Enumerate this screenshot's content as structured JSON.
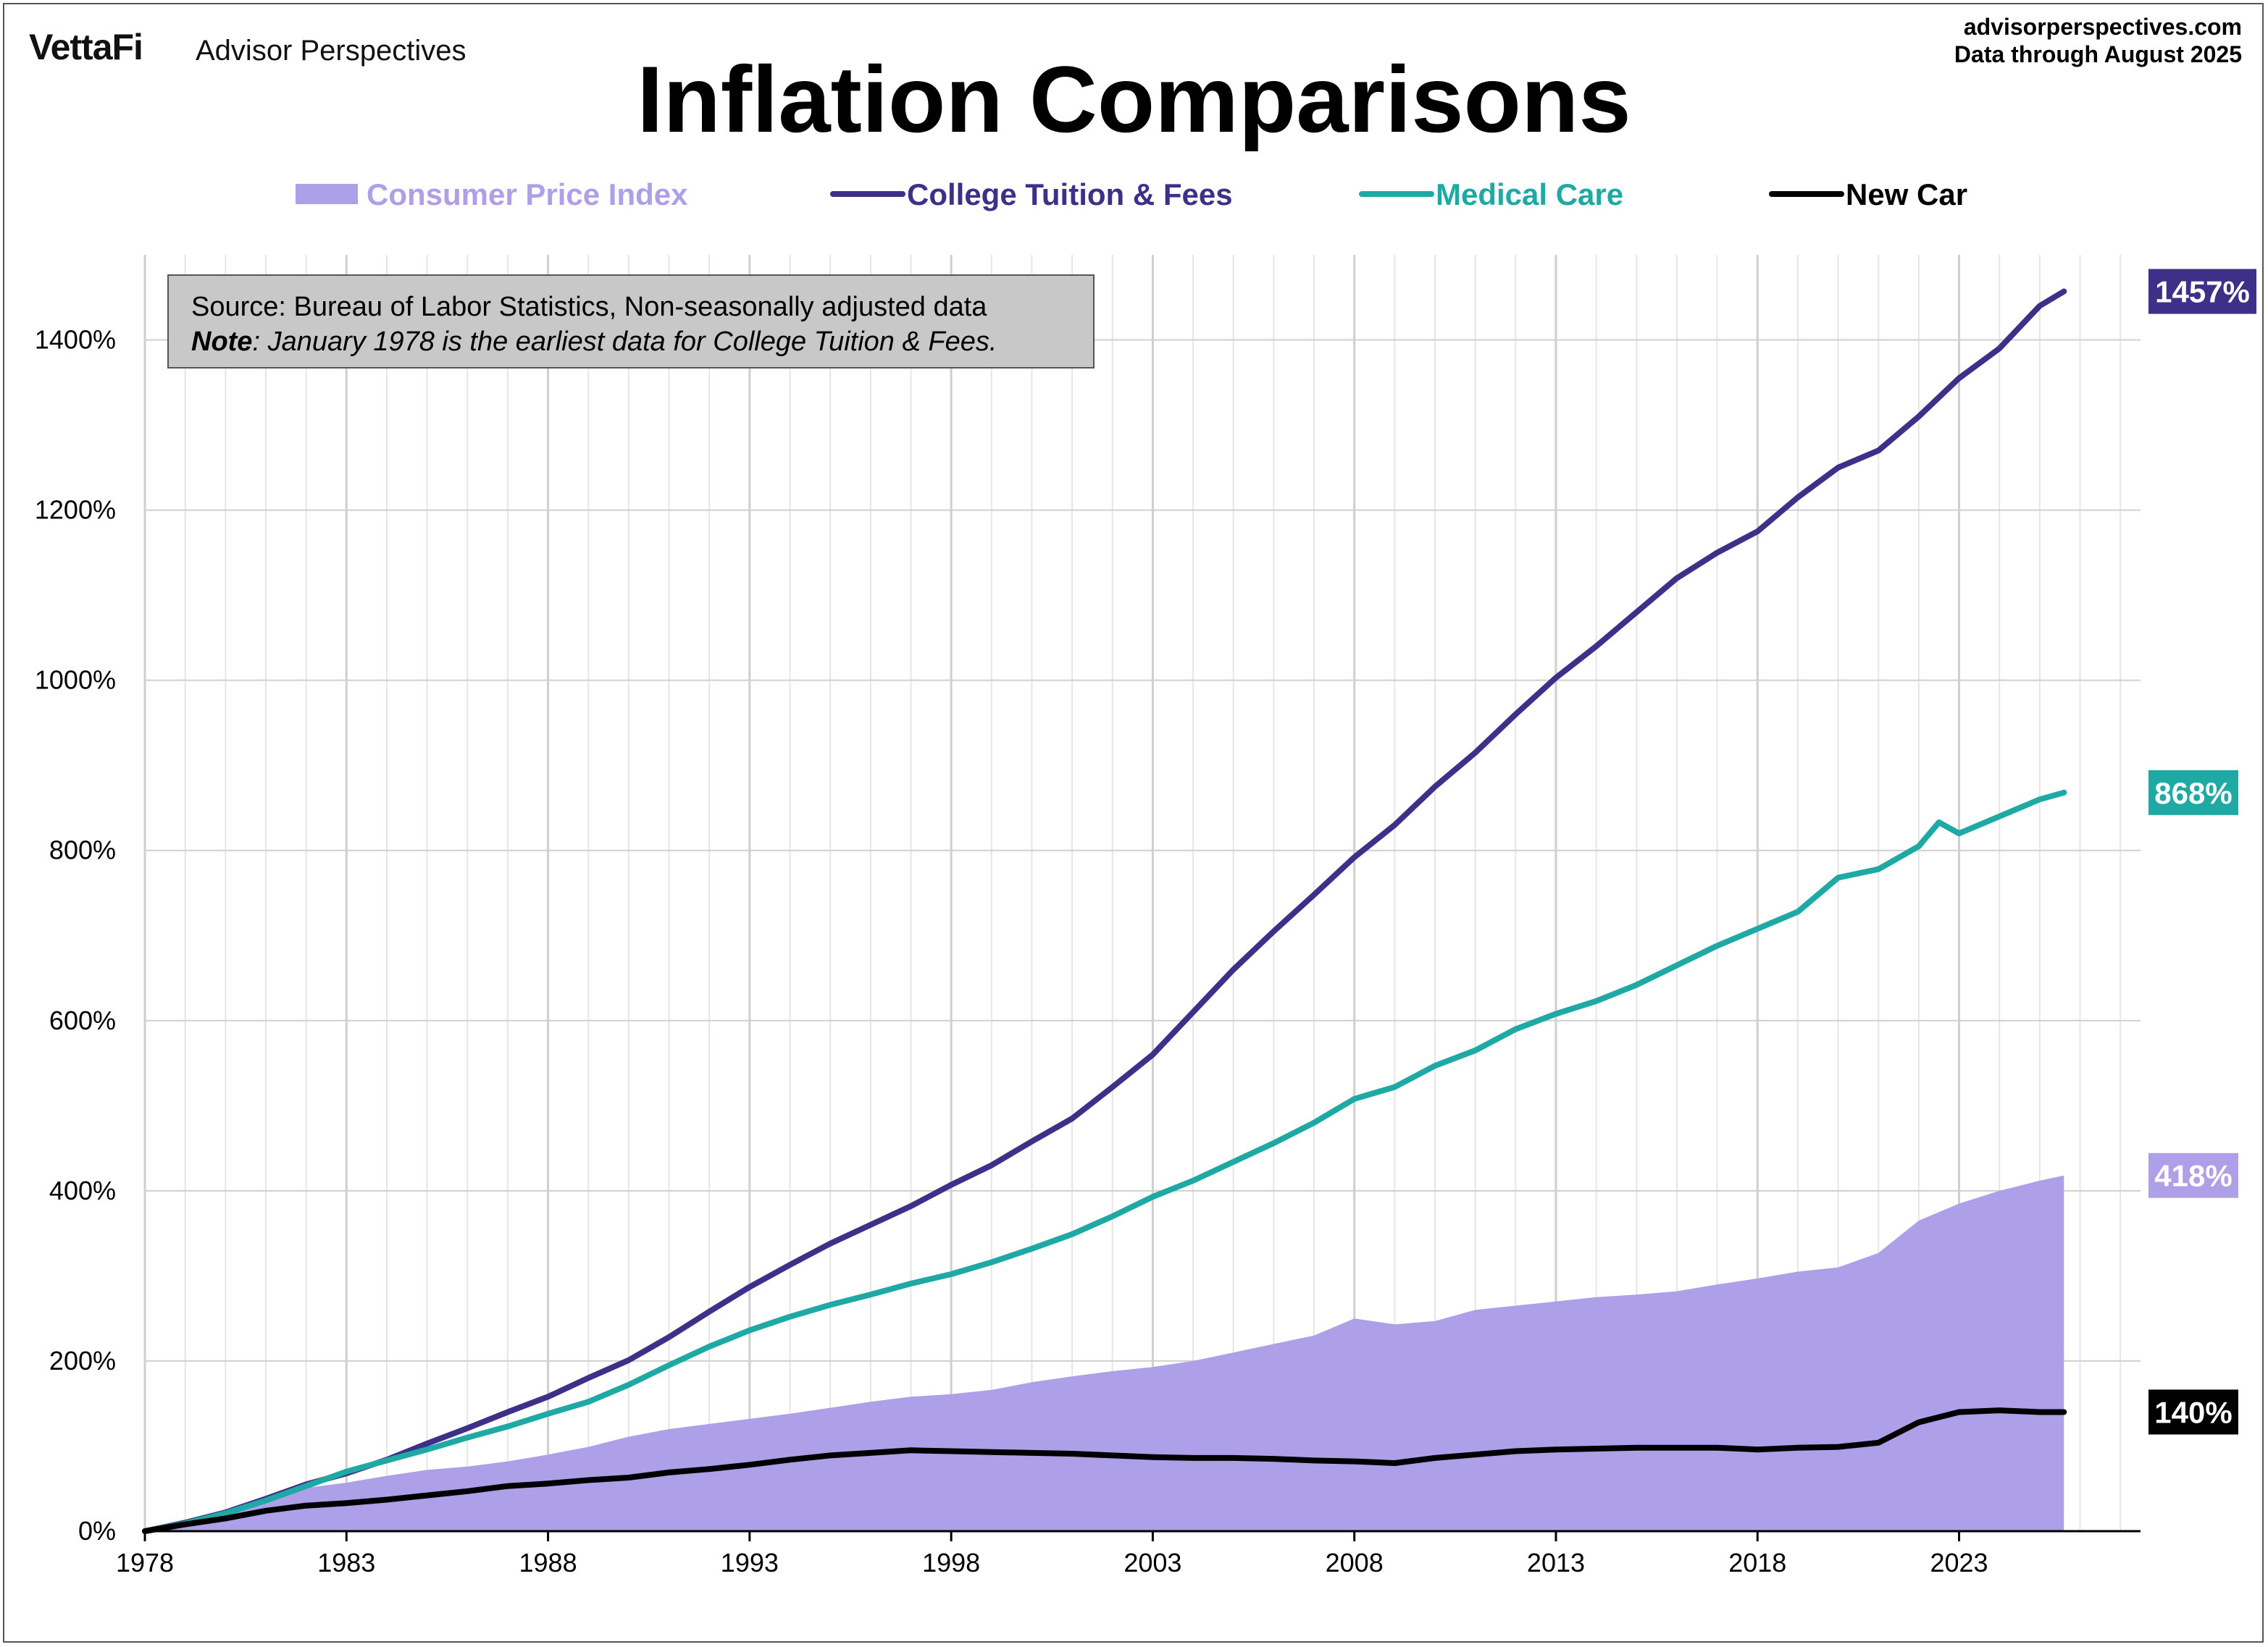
{
  "header": {
    "logo": "VettaFi",
    "logo_sub": "Advisor Perspectives",
    "site": "advisorperspectives.com",
    "data_through": "Data through  August 2025"
  },
  "chart_data": {
    "type": "line",
    "title": "Inflation Comparisons",
    "xlabel": "",
    "ylabel": "",
    "xlim": [
      1978,
      2027.5
    ],
    "ylim": [
      0,
      1500
    ],
    "y_ticks": [
      0,
      200,
      400,
      600,
      800,
      1000,
      1200,
      1400
    ],
    "y_tick_labels": [
      "0%",
      "200%",
      "400%",
      "600%",
      "800%",
      "1000%",
      "1200%",
      "1400%"
    ],
    "x_ticks": [
      1978,
      1983,
      1988,
      1993,
      1998,
      2003,
      2008,
      2013,
      2018,
      2023
    ],
    "x_tick_labels": [
      "1978",
      "1983",
      "1988",
      "1993",
      "1998",
      "2003",
      "2008",
      "2013",
      "2018",
      "2023"
    ],
    "grid": true,
    "legend_position": "top",
    "note": {
      "line1": "Source: Bureau of Labor Statistics, Non-seasonally adjusted data",
      "line2_bold": "Note",
      "line2_rest": ": January 1978 is the earliest data for College Tuition & Fees."
    },
    "series": [
      {
        "name": "Consumer Price Index",
        "style": "area",
        "color": "#ada0e8",
        "end_label": "418%",
        "points": [
          [
            1978,
            0
          ],
          [
            1979,
            10
          ],
          [
            1980,
            25
          ],
          [
            1981,
            40
          ],
          [
            1982,
            51
          ],
          [
            1983,
            57
          ],
          [
            1984,
            65
          ],
          [
            1985,
            72
          ],
          [
            1986,
            76
          ],
          [
            1987,
            82
          ],
          [
            1988,
            90
          ],
          [
            1989,
            99
          ],
          [
            1990,
            111
          ],
          [
            1991,
            120
          ],
          [
            1992,
            126
          ],
          [
            1993,
            132
          ],
          [
            1994,
            138
          ],
          [
            1995,
            145
          ],
          [
            1996,
            152
          ],
          [
            1997,
            158
          ],
          [
            1998,
            161
          ],
          [
            1999,
            166
          ],
          [
            2000,
            175
          ],
          [
            2001,
            182
          ],
          [
            2002,
            188
          ],
          [
            2003,
            193
          ],
          [
            2004,
            200
          ],
          [
            2005,
            210
          ],
          [
            2006,
            220
          ],
          [
            2007,
            230
          ],
          [
            2008,
            250
          ],
          [
            2009,
            243
          ],
          [
            2010,
            247
          ],
          [
            2011,
            260
          ],
          [
            2012,
            265
          ],
          [
            2013,
            270
          ],
          [
            2014,
            275
          ],
          [
            2015,
            278
          ],
          [
            2016,
            282
          ],
          [
            2017,
            290
          ],
          [
            2018,
            297
          ],
          [
            2019,
            305
          ],
          [
            2020,
            310
          ],
          [
            2021,
            327
          ],
          [
            2022,
            365
          ],
          [
            2023,
            385
          ],
          [
            2024,
            400
          ],
          [
            2025,
            412
          ],
          [
            2025.6,
            418
          ]
        ]
      },
      {
        "name": "College Tuition & Fees",
        "style": "line",
        "color": "#3e2f88",
        "end_label": "1457%",
        "points": [
          [
            1978,
            0
          ],
          [
            1979,
            10
          ],
          [
            1980,
            22
          ],
          [
            1981,
            38
          ],
          [
            1982,
            55
          ],
          [
            1983,
            68
          ],
          [
            1984,
            84
          ],
          [
            1985,
            103
          ],
          [
            1986,
            121
          ],
          [
            1987,
            140
          ],
          [
            1988,
            158
          ],
          [
            1989,
            180
          ],
          [
            1990,
            201
          ],
          [
            1991,
            228
          ],
          [
            1992,
            258
          ],
          [
            1993,
            287
          ],
          [
            1994,
            313
          ],
          [
            1995,
            338
          ],
          [
            1996,
            360
          ],
          [
            1997,
            382
          ],
          [
            1998,
            407
          ],
          [
            1999,
            430
          ],
          [
            2000,
            458
          ],
          [
            2001,
            485
          ],
          [
            2002,
            522
          ],
          [
            2003,
            560
          ],
          [
            2004,
            610
          ],
          [
            2005,
            660
          ],
          [
            2006,
            705
          ],
          [
            2007,
            748
          ],
          [
            2008,
            792
          ],
          [
            2009,
            830
          ],
          [
            2010,
            875
          ],
          [
            2011,
            915
          ],
          [
            2012,
            960
          ],
          [
            2013,
            1003
          ],
          [
            2014,
            1040
          ],
          [
            2015,
            1080
          ],
          [
            2016,
            1120
          ],
          [
            2017,
            1150
          ],
          [
            2018,
            1175
          ],
          [
            2019,
            1215
          ],
          [
            2020,
            1250
          ],
          [
            2021,
            1270
          ],
          [
            2022,
            1310
          ],
          [
            2023,
            1355
          ],
          [
            2024,
            1390
          ],
          [
            2025,
            1440
          ],
          [
            2025.6,
            1457
          ]
        ]
      },
      {
        "name": "Medical Care",
        "style": "line",
        "color": "#1fa9a5",
        "end_label": "868%",
        "points": [
          [
            1978,
            0
          ],
          [
            1979,
            9
          ],
          [
            1980,
            21
          ],
          [
            1981,
            36
          ],
          [
            1982,
            53
          ],
          [
            1983,
            70
          ],
          [
            1984,
            83
          ],
          [
            1985,
            96
          ],
          [
            1986,
            110
          ],
          [
            1987,
            123
          ],
          [
            1988,
            138
          ],
          [
            1989,
            152
          ],
          [
            1990,
            172
          ],
          [
            1991,
            195
          ],
          [
            1992,
            217
          ],
          [
            1993,
            236
          ],
          [
            1994,
            252
          ],
          [
            1995,
            266
          ],
          [
            1996,
            278
          ],
          [
            1997,
            291
          ],
          [
            1998,
            302
          ],
          [
            1999,
            316
          ],
          [
            2000,
            332
          ],
          [
            2001,
            349
          ],
          [
            2002,
            370
          ],
          [
            2003,
            393
          ],
          [
            2004,
            412
          ],
          [
            2005,
            434
          ],
          [
            2006,
            456
          ],
          [
            2007,
            480
          ],
          [
            2008,
            508
          ],
          [
            2009,
            522
          ],
          [
            2010,
            547
          ],
          [
            2011,
            565
          ],
          [
            2012,
            590
          ],
          [
            2013,
            608
          ],
          [
            2014,
            623
          ],
          [
            2015,
            642
          ],
          [
            2016,
            665
          ],
          [
            2017,
            688
          ],
          [
            2018,
            708
          ],
          [
            2019,
            728
          ],
          [
            2020,
            768
          ],
          [
            2021,
            778
          ],
          [
            2022,
            805
          ],
          [
            2022.5,
            833
          ],
          [
            2023,
            820
          ],
          [
            2024,
            840
          ],
          [
            2025,
            860
          ],
          [
            2025.6,
            868
          ]
        ]
      },
      {
        "name": "New Car",
        "style": "line",
        "color": "#000000",
        "end_label": "140%",
        "points": [
          [
            1978,
            0
          ],
          [
            1979,
            8
          ],
          [
            1980,
            15
          ],
          [
            1981,
            24
          ],
          [
            1982,
            30
          ],
          [
            1983,
            33
          ],
          [
            1984,
            37
          ],
          [
            1985,
            42
          ],
          [
            1986,
            47
          ],
          [
            1987,
            53
          ],
          [
            1988,
            56
          ],
          [
            1989,
            60
          ],
          [
            1990,
            63
          ],
          [
            1991,
            69
          ],
          [
            1992,
            73
          ],
          [
            1993,
            78
          ],
          [
            1994,
            84
          ],
          [
            1995,
            89
          ],
          [
            1996,
            92
          ],
          [
            1997,
            95
          ],
          [
            1998,
            94
          ],
          [
            1999,
            93
          ],
          [
            2000,
            92
          ],
          [
            2001,
            91
          ],
          [
            2002,
            89
          ],
          [
            2003,
            87
          ],
          [
            2004,
            86
          ],
          [
            2005,
            86
          ],
          [
            2006,
            85
          ],
          [
            2007,
            83
          ],
          [
            2008,
            82
          ],
          [
            2009,
            80
          ],
          [
            2010,
            86
          ],
          [
            2011,
            90
          ],
          [
            2012,
            94
          ],
          [
            2013,
            96
          ],
          [
            2014,
            97
          ],
          [
            2015,
            98
          ],
          [
            2016,
            98
          ],
          [
            2017,
            98
          ],
          [
            2018,
            96
          ],
          [
            2019,
            98
          ],
          [
            2020,
            99
          ],
          [
            2021,
            104
          ],
          [
            2022,
            128
          ],
          [
            2023,
            140
          ],
          [
            2024,
            142
          ],
          [
            2025,
            140
          ],
          [
            2025.6,
            140
          ]
        ]
      }
    ]
  }
}
